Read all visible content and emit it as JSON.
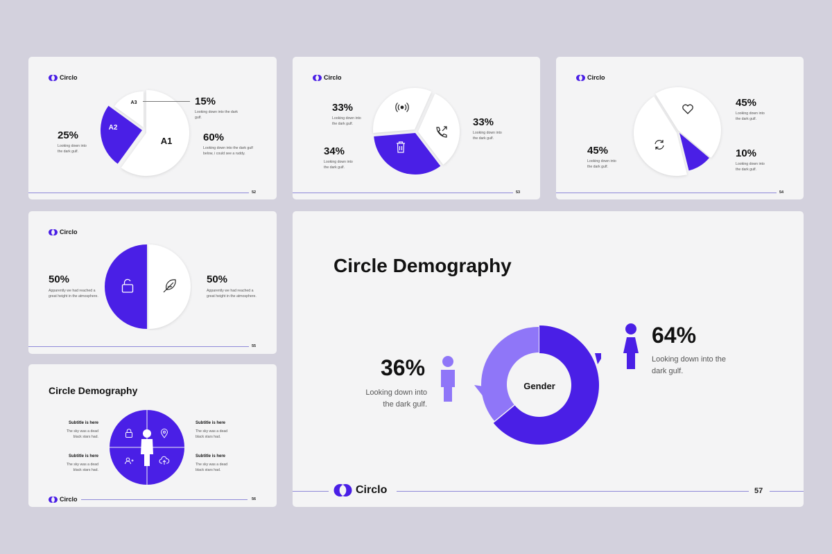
{
  "brand": {
    "name": "Circlo"
  },
  "colors": {
    "accent": "#4a1fe6",
    "accent_light": "#8f76f8",
    "white": "#ffffff",
    "bg": "#f4f4f5",
    "page": "#d3d1dd"
  },
  "slide52": {
    "page": "52",
    "chart_data": {
      "type": "pie",
      "categories": [
        "A1",
        "A2",
        "A3"
      ],
      "values": [
        60,
        25,
        15
      ]
    },
    "labels": {
      "a1": "A1",
      "a2": "A2",
      "a3": "A3"
    },
    "stats": [
      {
        "value": "15%",
        "caption": "Looking down into the dark gulf."
      },
      {
        "value": "25%",
        "caption": "Looking down into the dark gulf."
      },
      {
        "value": "60%",
        "caption": "Looking down into the dark gulf below, i could see a ruddy."
      }
    ]
  },
  "slide53": {
    "page": "53",
    "chart_data": {
      "type": "pie",
      "values": [
        33,
        33,
        34
      ]
    },
    "icons": [
      "broadcast-icon",
      "phone-outgoing-icon",
      "trash-icon"
    ],
    "stats": [
      {
        "value": "33%",
        "caption": "Looking down into the dark gulf."
      },
      {
        "value": "33%",
        "caption": "Looking down into the dark gulf."
      },
      {
        "value": "34%",
        "caption": "Looking down into the dark gulf."
      }
    ]
  },
  "slide54": {
    "page": "54",
    "chart_data": {
      "type": "pie",
      "values": [
        45,
        45,
        10
      ]
    },
    "icons": [
      "heart-icon",
      "refresh-icon",
      "umbrella-icon"
    ],
    "stats": [
      {
        "value": "45%",
        "caption": "Looking down into the dark gulf."
      },
      {
        "value": "45%",
        "caption": "Looking down into the dark gulf."
      },
      {
        "value": "10%",
        "caption": "Looking down into the dark gulf."
      }
    ]
  },
  "slide55": {
    "page": "55",
    "chart_data": {
      "type": "pie",
      "values": [
        50,
        50
      ]
    },
    "icons": [
      "unlock-icon",
      "feather-icon"
    ],
    "stats": [
      {
        "value": "50%",
        "caption": "Apparently we had reached a great height in the atmosphere."
      },
      {
        "value": "50%",
        "caption": "Apparently we had reached a great height in the atmosphere."
      }
    ]
  },
  "slide56": {
    "page": "56",
    "title": "Circle Demography",
    "items": [
      {
        "subtitle": "Subtitle is here",
        "text": "The sky was a dead black stars had."
      },
      {
        "subtitle": "Subtitle is here",
        "text": "The sky was a dead black stars had."
      },
      {
        "subtitle": "Subtitle is here",
        "text": "The sky was a dead black stars had."
      },
      {
        "subtitle": "Subtitle is here",
        "text": "The sky was a dead black stars had."
      }
    ],
    "icons": [
      "lock-icon",
      "location-pin-icon",
      "user-plus-icon",
      "cloud-upload-icon",
      "person-icon"
    ]
  },
  "slide57": {
    "page": "57",
    "title": "Circle Demography",
    "center_label": "Gender",
    "chart_data": {
      "type": "pie",
      "categories": [
        "male",
        "female"
      ],
      "values": [
        36,
        64
      ]
    },
    "stats": [
      {
        "value": "36%",
        "caption_line1": "Looking down into",
        "caption_line2": "the dark gulf."
      },
      {
        "value": "64%",
        "caption_line1": "Looking down into the",
        "caption_line2": "dark gulf."
      }
    ]
  }
}
